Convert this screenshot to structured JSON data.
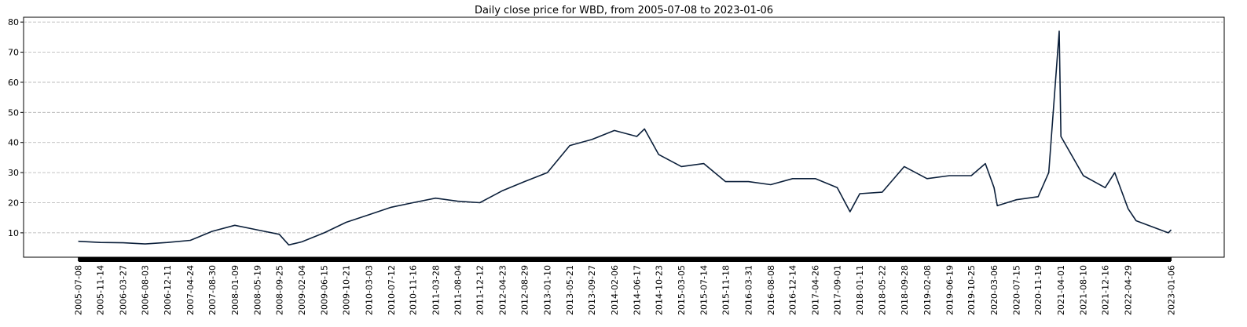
{
  "chart_data": {
    "type": "line",
    "title": "Daily close price for WBD, from 2005-07-08 to 2023-01-06",
    "x": [
      "2005-07-08",
      "2005-11-14",
      "2006-03-27",
      "2006-08-03",
      "2006-12-11",
      "2007-04-24",
      "2007-08-30",
      "2008-01-09",
      "2008-05-19",
      "2008-09-25",
      "2008-11-20",
      "2009-02-04",
      "2009-06-15",
      "2009-10-21",
      "2010-03-03",
      "2010-07-12",
      "2010-11-16",
      "2011-03-28",
      "2011-08-04",
      "2011-12-12",
      "2012-04-23",
      "2012-08-29",
      "2013-01-10",
      "2013-05-21",
      "2013-09-27",
      "2014-02-06",
      "2014-06-17",
      "2014-08-01",
      "2014-10-23",
      "2015-03-05",
      "2015-07-14",
      "2015-11-18",
      "2016-03-31",
      "2016-08-08",
      "2016-12-14",
      "2017-04-26",
      "2017-09-01",
      "2017-11-15",
      "2018-01-11",
      "2018-05-22",
      "2018-09-28",
      "2019-02-08",
      "2019-06-19",
      "2019-10-25",
      "2020-01-15",
      "2020-03-06",
      "2020-03-25",
      "2020-07-15",
      "2020-11-19",
      "2021-01-20",
      "2021-03-22",
      "2021-04-01",
      "2021-08-10",
      "2021-12-16",
      "2022-02-10",
      "2022-04-29",
      "2022-06-15",
      "2022-12-20",
      "2023-01-06"
    ],
    "series": [
      {
        "name": "WBD",
        "color": "#0b1f3a",
        "values": [
          7.2,
          6.8,
          6.7,
          6.3,
          6.8,
          7.5,
          10.5,
          12.5,
          11,
          9.5,
          6,
          7,
          10,
          13.5,
          16,
          18.5,
          20,
          21.5,
          20.5,
          20,
          24,
          27,
          30,
          39,
          41,
          44,
          42,
          44.5,
          36,
          32,
          33,
          27,
          27,
          26,
          28,
          28,
          25,
          17,
          23,
          23.5,
          32,
          28,
          29,
          29,
          33,
          25,
          19,
          21,
          22,
          30,
          77,
          42,
          29,
          25,
          30,
          18,
          14,
          10,
          11
        ]
      }
    ],
    "xlim": [
      "2004-08-22",
      "2023-11-12"
    ],
    "xticks": [
      "2005-07-08",
      "2005-11-14",
      "2006-03-27",
      "2006-08-03",
      "2006-12-11",
      "2007-04-24",
      "2007-08-30",
      "2008-01-09",
      "2008-05-19",
      "2008-09-25",
      "2009-02-04",
      "2009-06-15",
      "2009-10-21",
      "2010-03-03",
      "2010-07-12",
      "2010-11-16",
      "2011-03-28",
      "2011-08-04",
      "2011-12-12",
      "2012-04-23",
      "2012-08-29",
      "2013-01-10",
      "2013-05-21",
      "2013-09-27",
      "2014-02-06",
      "2014-06-17",
      "2014-10-23",
      "2015-03-05",
      "2015-07-14",
      "2015-11-18",
      "2016-03-31",
      "2016-08-08",
      "2016-12-14",
      "2017-04-26",
      "2017-09-01",
      "2018-01-11",
      "2018-05-22",
      "2018-09-28",
      "2019-02-08",
      "2019-06-19",
      "2019-10-25",
      "2020-03-06",
      "2020-07-15",
      "2020-11-19",
      "2021-04-01",
      "2021-08-10",
      "2021-12-16",
      "2022-04-29",
      "2023-01-06"
    ],
    "ylim": [
      1.9,
      81.6
    ],
    "yticks": [
      10,
      20,
      30,
      40,
      50,
      60,
      70,
      80
    ],
    "grid": true
  }
}
